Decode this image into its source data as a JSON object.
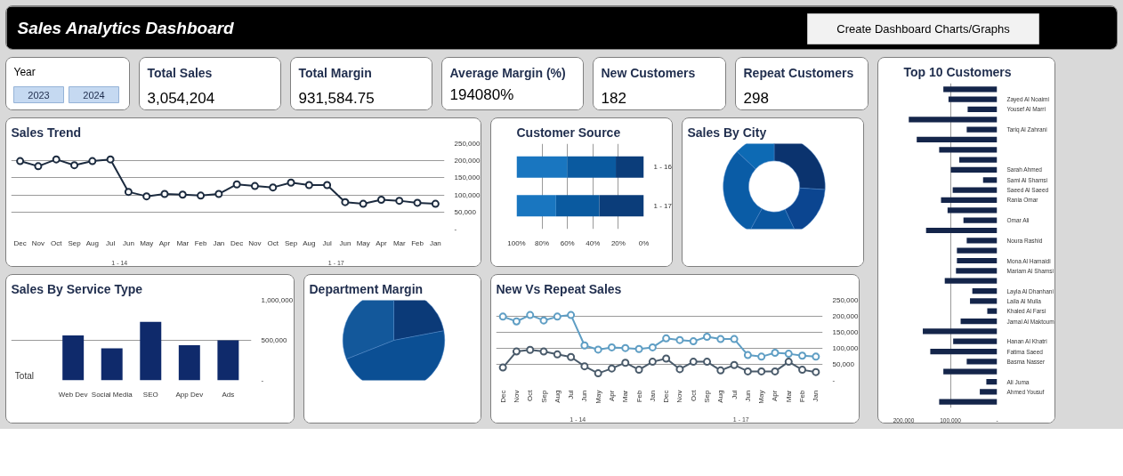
{
  "chart_data": [
    {
      "type": "other",
      "title": "Sales Analytics Dashboard",
      "annotations": [
        "Create Dashboard Charts/Graphs"
      ]
    },
    {
      "type": "other",
      "title": "Year",
      "annotations": [
        "2023",
        "2024"
      ]
    },
    {
      "type": "other",
      "title": "Total Sales",
      "annotations": [
        "3,054,204"
      ]
    },
    {
      "type": "other",
      "title": "Total Margin",
      "annotations": [
        "931,584.75"
      ]
    },
    {
      "type": "other",
      "title": "Average Margin (%)",
      "annotations": [
        "194080%"
      ]
    },
    {
      "type": "other",
      "title": "New Customers",
      "annotations": [
        "182"
      ]
    },
    {
      "type": "other",
      "title": "Repeat Customers",
      "annotations": [
        "298"
      ]
    },
    {
      "type": "line",
      "title": "Sales Trend",
      "categories": [
        "Dec",
        "Nov",
        "Oct",
        "Sep",
        "Aug",
        "Jul",
        "Jun",
        "May",
        "Apr",
        "Mar",
        "Feb",
        "Jan",
        "Dec",
        "Nov",
        "Oct",
        "Sep",
        "Aug",
        "Jul",
        "Jun",
        "May",
        "Apr",
        "Mar",
        "Feb",
        "Jan"
      ],
      "series": [
        {
          "color": "#1c2b3f",
          "values": [
            199000,
            184000,
            204000,
            187000,
            199000,
            204000,
            109000,
            96000,
            103000,
            101000,
            98000,
            103000,
            131000,
            126000,
            122000,
            136000,
            129000,
            129000,
            79000,
            74000,
            86000,
            83000,
            77000,
            74000
          ]
        }
      ],
      "ylim": [
        0,
        250000
      ],
      "yticks": [
        {
          "value": 0,
          "label": "-"
        },
        {
          "value": 50000,
          "label": "50,000"
        },
        {
          "value": 100000,
          "label": "100,000"
        },
        {
          "value": 150000,
          "label": "150,000"
        },
        {
          "value": 200000,
          "label": "200,000"
        },
        {
          "value": 250000,
          "label": "250,000"
        }
      ],
      "grid": "y",
      "marker": "circle",
      "line_style": "solid",
      "annotations": [
        "1 - 14",
        "1 - 17"
      ]
    },
    {
      "type": "bar",
      "title": "Customer Source",
      "orientation": "horizontal",
      "stacked": true,
      "categories": [
        "1 - 16",
        "1 - 17"
      ],
      "series": [
        {
          "color": "#0b3d7a",
          "values": [
            22,
            35
          ]
        },
        {
          "color": "#0a5aa0",
          "values": [
            38,
            34
          ]
        },
        {
          "color": "#1976c0",
          "values": [
            40,
            31
          ]
        }
      ],
      "xlim": [
        100,
        0
      ],
      "xticks": [
        {
          "value": 100,
          "label": "100%"
        },
        {
          "value": 80,
          "label": "80%"
        },
        {
          "value": 60,
          "label": "60%"
        },
        {
          "value": 40,
          "label": "40%"
        },
        {
          "value": 20,
          "label": "20%"
        },
        {
          "value": 0,
          "label": "0%"
        }
      ],
      "grid": "x"
    },
    {
      "type": "donut",
      "title": "Sales By City",
      "categories": [
        null,
        null,
        null,
        null,
        null
      ],
      "values": [
        26,
        17,
        15,
        29,
        13
      ],
      "colors": [
        "#0b336e",
        "#0b4590",
        "#0a56a0",
        "#0a5ca6",
        "#0d6ab4"
      ]
    },
    {
      "type": "bar",
      "title": "Top 10 Customers",
      "orientation": "horizontal",
      "categories": [
        null,
        "Zayed Al Noaimi",
        "Yousef Al Marri",
        null,
        "Tariq Al Zahrani",
        null,
        null,
        null,
        "Sarah Ahmed",
        "Sami Al Shamsi",
        "Saeed Al Saeed",
        "Rania Omar",
        null,
        "Omar Ali",
        null,
        "Noura Rashid",
        null,
        "Mona Al Hamaidi",
        "Mariam Al Shamsi",
        null,
        "Layla Al Dhanhani",
        "Laila Al Mulla",
        "Khaled Al Farsi",
        "Jamal Al Maktoum",
        null,
        "Hanan Al Khatri",
        "Fatima Saeed",
        "Basma Nasser",
        null,
        "Ali Juma",
        "Ahmed Yousuf",
        null
      ],
      "series": [
        {
          "color": "#14254a",
          "values": [
            115000,
            104000,
            63000,
            189000,
            65000,
            172000,
            124000,
            81000,
            99000,
            30000,
            95000,
            120000,
            106000,
            72000,
            152000,
            65000,
            86000,
            86000,
            88000,
            112000,
            53000,
            58000,
            21000,
            78000,
            159000,
            94000,
            143000,
            65000,
            115000,
            23000,
            37000,
            124000
          ]
        }
      ],
      "xlim": [
        200000,
        0
      ],
      "xticks": [
        {
          "value": 200000,
          "label": "200,000"
        },
        {
          "value": 100000,
          "label": "100,000"
        },
        {
          "value": 0,
          "label": "-"
        }
      ],
      "grid": "x"
    },
    {
      "type": "bar",
      "title": "Sales By Service Type",
      "categories": [
        "Web Dev",
        "Social Media",
        "SEO",
        "App Dev",
        "Ads"
      ],
      "series": [
        {
          "name": "Total",
          "color": "#0f2a6b",
          "values": [
            560000,
            400000,
            730000,
            440000,
            500000
          ]
        }
      ],
      "ylim": [
        0,
        1000000
      ],
      "yticks": [
        {
          "value": 0,
          "label": "-"
        },
        {
          "value": 500000,
          "label": "500,000"
        },
        {
          "value": 1000000,
          "label": "1,000,000"
        }
      ],
      "grid": "y"
    },
    {
      "type": "pie",
      "title": "Department Margin",
      "categories": [
        null,
        null,
        null
      ],
      "values": [
        22,
        47,
        31
      ],
      "colors": [
        "#0b3a78",
        "#0b4f94",
        "#13589b"
      ]
    },
    {
      "type": "line",
      "title": "New Vs Repeat Sales",
      "categories": [
        "Dec",
        "Nov",
        "Oct",
        "Sep",
        "Aug",
        "Jul",
        "Jun",
        "May",
        "Apr",
        "Mar",
        "Feb",
        "Jan",
        "Dec",
        "Nov",
        "Oct",
        "Sep",
        "Aug",
        "Jul",
        "Jun",
        "May",
        "Apr",
        "Mar",
        "Feb",
        "Jan"
      ],
      "series": [
        {
          "color": "#5f9ec4",
          "values": [
            199000,
            184000,
            204000,
            187000,
            199000,
            204000,
            109000,
            96000,
            103000,
            101000,
            98000,
            103000,
            131000,
            126000,
            122000,
            136000,
            129000,
            129000,
            79000,
            74000,
            86000,
            83000,
            77000,
            74000
          ]
        },
        {
          "color": "#4a5b6b",
          "values": [
            40000,
            90000,
            95000,
            90000,
            81000,
            73000,
            44000,
            22000,
            37000,
            55000,
            33000,
            58000,
            68000,
            35000,
            58000,
            58000,
            31000,
            48000,
            28000,
            28000,
            28000,
            58000,
            33000,
            26000
          ]
        }
      ],
      "ylim": [
        0,
        250000
      ],
      "yticks": [
        {
          "value": 0,
          "label": "-"
        },
        {
          "value": 50000,
          "label": "50,000"
        },
        {
          "value": 100000,
          "label": "100,000"
        },
        {
          "value": 150000,
          "label": "150,000"
        },
        {
          "value": 200000,
          "label": "200,000"
        },
        {
          "value": 250000,
          "label": "250,000"
        }
      ],
      "grid": "y",
      "marker": "circle",
      "line_style": "solid",
      "annotations": [
        "1 - 14",
        "1 - 17"
      ]
    }
  ]
}
